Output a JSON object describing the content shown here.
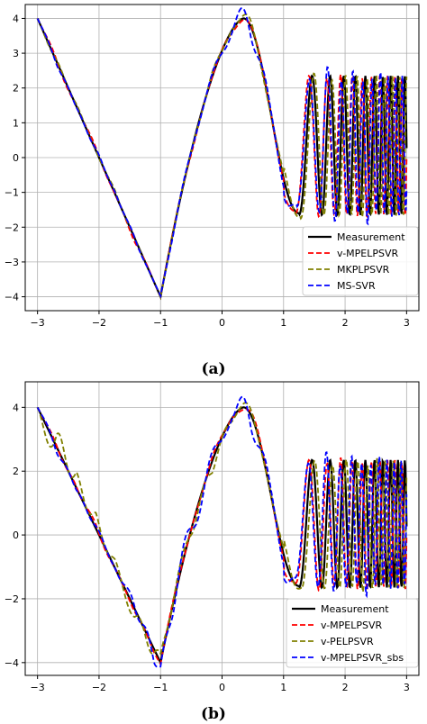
{
  "chart_data": [
    {
      "type": "line",
      "panel_label": "(a)",
      "xlim": [
        -3.2,
        3.2
      ],
      "ylim": [
        -4.4,
        4.4
      ],
      "xticks": [
        -3,
        -2,
        -1,
        0,
        1,
        2,
        3
      ],
      "yticks": [
        -4,
        -3,
        -2,
        -1,
        0,
        1,
        2,
        3,
        4
      ],
      "grid": true,
      "legend_position": "bottom-right",
      "series": [
        {
          "name": "Measurement",
          "color": "#000000",
          "style": "solid",
          "width": 2.2
        },
        {
          "name": "v-MPELPSVR",
          "color": "#ff0000",
          "style": "dashed",
          "width": 1.8,
          "dy": [
            0,
            0.15,
            0,
            0.12,
            0,
            -0.12,
            0,
            0.05,
            0.1,
            0,
            0.1,
            0.05,
            0,
            0.1,
            0,
            0.1,
            0,
            0.1,
            0,
            0.05
          ],
          "dphase": 0.05
        },
        {
          "name": "MKPLPSVR",
          "color": "#808000",
          "style": "dashed",
          "width": 1.8,
          "dy": [
            0,
            -0.1,
            0.08,
            0,
            0.1,
            -0.05,
            0,
            0.05,
            0,
            0.15,
            0,
            0.2,
            0.1,
            0.2,
            0.05,
            0.15,
            0,
            0.1,
            0,
            0.05
          ],
          "dphase": -0.03
        },
        {
          "name": "MS-SVR",
          "color": "#0000ff",
          "style": "dashed",
          "width": 1.8,
          "dy": [
            0,
            0.1,
            -0.05,
            0.1,
            -0.05,
            0.08,
            0,
            0.1,
            0.05,
            0.1,
            0.2,
            0.45,
            0.1,
            0.3,
            0.1,
            0.35,
            0.1,
            0.3,
            0.05,
            0.1
          ],
          "dphase": 0.04
        }
      ]
    },
    {
      "type": "line",
      "panel_label": "(b)",
      "xlim": [
        -3.2,
        3.2
      ],
      "ylim": [
        -4.4,
        4.8
      ],
      "xticks": [
        -3,
        -2,
        -1,
        0,
        1,
        2,
        3
      ],
      "yticks": [
        -4,
        -2,
        0,
        2,
        4
      ],
      "grid": true,
      "legend_position": "bottom-right",
      "series": [
        {
          "name": "Measurement",
          "color": "#000000",
          "style": "solid",
          "width": 2.2
        },
        {
          "name": "v-MPELPSVR",
          "color": "#ff0000",
          "style": "dashed",
          "width": 1.8,
          "dy": [
            0,
            0.15,
            -0.1,
            0.2,
            0,
            -0.1,
            0.1,
            0.1,
            0,
            0.15,
            0,
            0.2,
            0,
            0.25,
            0,
            0.2,
            0,
            0.15,
            0,
            0.1
          ],
          "dphase": 0.05
        },
        {
          "name": "v-PELPSVR",
          "color": "#808000",
          "style": "dashed",
          "width": 1.8,
          "dy": [
            0,
            -0.9,
            0.6,
            -0.5,
            0.3,
            0.4,
            -0.6,
            0.2,
            0.4,
            -0.4,
            0.1,
            0.2,
            0,
            0.3,
            -0.1,
            0.2,
            0,
            0.2,
            0,
            0.1
          ],
          "dphase": -0.04
        },
        {
          "name": "v-MPELPSVR_sbs",
          "color": "#0000ff",
          "style": "dashed",
          "width": 1.8,
          "dy": [
            0,
            0.2,
            -0.1,
            0.15,
            0,
            0.3,
            -0.5,
            0.4,
            0.5,
            0.3,
            0.1,
            0.6,
            0.2,
            0.4,
            0.1,
            0.3,
            0.1,
            0.3,
            0.05,
            0.1
          ],
          "dphase": 0.06
        }
      ]
    }
  ]
}
